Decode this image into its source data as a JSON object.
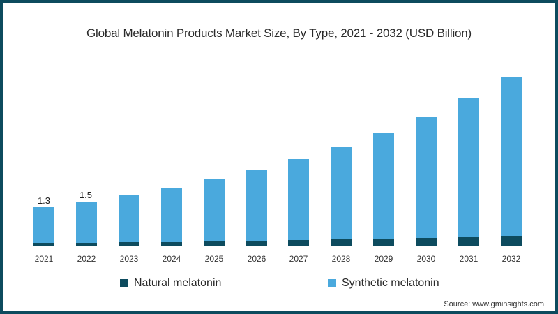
{
  "chart_data": {
    "type": "bar",
    "stacked": true,
    "title": "Global Melatonin Products Market Size, By Type, 2021 - 2032 (USD Billion)",
    "xlabel": "",
    "ylabel": "",
    "ylim": [
      0,
      6
    ],
    "grid": false,
    "legend_position": "bottom",
    "categories": [
      "2021",
      "2022",
      "2023",
      "2024",
      "2025",
      "2026",
      "2027",
      "2028",
      "2029",
      "2030",
      "2031",
      "2032"
    ],
    "series": [
      {
        "name": "Natural melatonin",
        "color": "#0d4b5e",
        "values": [
          0.09,
          0.1,
          0.11,
          0.12,
          0.14,
          0.16,
          0.19,
          0.21,
          0.24,
          0.26,
          0.29,
          0.33
        ]
      },
      {
        "name": "Synthetic melatonin",
        "color": "#4aa9dd",
        "values": [
          1.21,
          1.4,
          1.59,
          1.84,
          2.11,
          2.42,
          2.74,
          3.15,
          3.59,
          4.11,
          4.7,
          5.37
        ]
      }
    ],
    "totals": [
      1.3,
      1.5,
      1.7,
      1.96,
      2.25,
      2.58,
      2.93,
      3.36,
      3.83,
      4.37,
      4.99,
      5.7
    ],
    "data_labels": [
      {
        "category": "2021",
        "text": "1.3"
      },
      {
        "category": "2022",
        "text": "1.5"
      }
    ]
  },
  "title": "Global Melatonin Products Market Size, By Type, 2021 - 2032 (USD Billion)",
  "legend": {
    "natural": "Natural melatonin",
    "synthetic": "Synthetic melatonin"
  },
  "labels": {
    "l2021": "1.3",
    "l2022": "1.5"
  },
  "source": "Source: www.gminsights.com",
  "colors": {
    "natural": "#0d4b5e",
    "synthetic": "#4aa9dd",
    "border": "#0d4b5e"
  }
}
